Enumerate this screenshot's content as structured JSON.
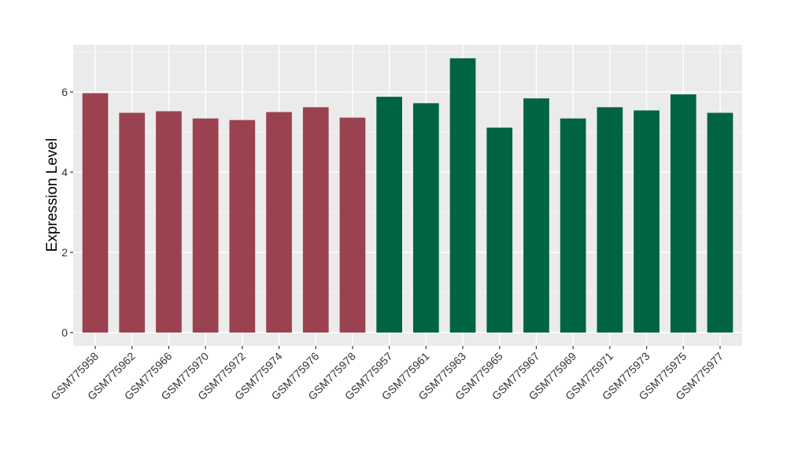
{
  "chart_data": {
    "type": "bar",
    "title": "",
    "xlabel": "",
    "ylabel": "Expression Level",
    "ylim": [
      0,
      7.2
    ],
    "y_ticks": [
      0,
      2,
      4,
      6
    ],
    "grid": true,
    "legend": "none",
    "colors": {
      "panel": "#EBEBEB",
      "grid_major": "#FFFFFF",
      "grid_minor": "#F5F5F5",
      "group_a": "#9A4250",
      "group_b": "#006443"
    },
    "categories": [
      "GSM775958",
      "GSM775962",
      "GSM775966",
      "GSM775970",
      "GSM775972",
      "GSM775974",
      "GSM775976",
      "GSM775978",
      "GSM775957",
      "GSM775961",
      "GSM775963",
      "GSM775965",
      "GSM775967",
      "GSM775969",
      "GSM775971",
      "GSM775973",
      "GSM775975",
      "GSM775977"
    ],
    "values": [
      5.97,
      5.48,
      5.52,
      5.34,
      5.3,
      5.5,
      5.62,
      5.36,
      5.88,
      5.72,
      6.84,
      5.11,
      5.84,
      5.34,
      5.62,
      5.54,
      5.94,
      5.48
    ],
    "groups": [
      "a",
      "a",
      "a",
      "a",
      "a",
      "a",
      "a",
      "a",
      "b",
      "b",
      "b",
      "b",
      "b",
      "b",
      "b",
      "b",
      "b",
      "b"
    ]
  }
}
